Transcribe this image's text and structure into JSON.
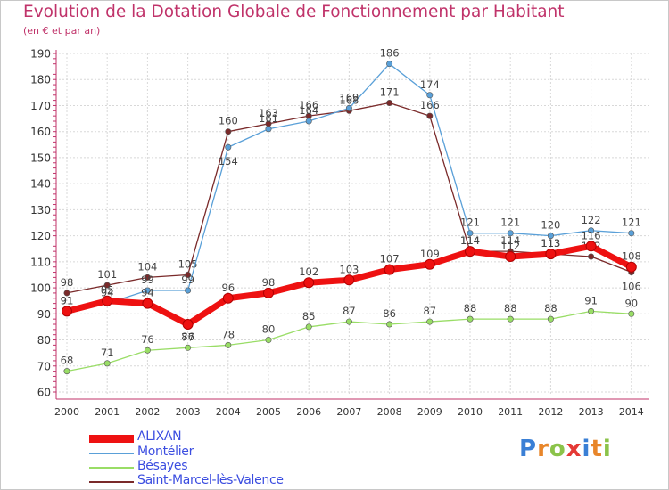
{
  "header": {
    "title": "Evolution de la Dotation Globale de Fonctionnement par Habitant",
    "subtitle": "(en € et par an)"
  },
  "logo": {
    "text": "Proxiti",
    "colors": [
      "#3a7fd5",
      "#e8862a",
      "#8bc34a",
      "#e53935",
      "#3a7fd5",
      "#e8862a",
      "#8bc34a"
    ]
  },
  "chart_data": {
    "type": "line",
    "title": "Evolution de la Dotation Globale de Fonctionnement par Habitant",
    "subtitle": "(en € et par an)",
    "xlabel": "",
    "ylabel": "",
    "x": [
      2000,
      2001,
      2002,
      2003,
      2004,
      2005,
      2006,
      2007,
      2008,
      2009,
      2010,
      2011,
      2012,
      2013,
      2014
    ],
    "x_tick_labels": [
      "2000",
      "2001",
      "2002",
      "2003",
      "2004",
      "2005",
      "2006",
      "2007",
      "2008",
      "2009",
      "2010",
      "2011",
      "2012",
      "2013",
      "2014"
    ],
    "ylim": [
      60,
      190
    ],
    "y_tick_labels": [
      "60",
      "70",
      "80",
      "90",
      "100",
      "110",
      "120",
      "130",
      "140",
      "150",
      "160",
      "170",
      "180",
      "190"
    ],
    "grid": true,
    "legend_position": "bottom-left",
    "series": [
      {
        "name": "ALIXAN",
        "color": "#ee1111",
        "values": [
          91,
          95,
          94,
          86,
          96,
          98,
          102,
          103,
          107,
          109,
          114,
          112,
          113,
          116,
          108
        ]
      },
      {
        "name": "Montélier",
        "color": "#5aa0d8",
        "values": [
          91,
          94,
          99,
          99,
          154,
          161,
          164,
          169,
          186,
          174,
          121,
          121,
          120,
          122,
          121
        ]
      },
      {
        "name": "Bésayes",
        "color": "#99dd66",
        "values": [
          68,
          71,
          76,
          77,
          78,
          80,
          85,
          87,
          86,
          87,
          88,
          88,
          88,
          91,
          90
        ]
      },
      {
        "name": "Saint-Marcel-lès-Valence",
        "color": "#7a2a2a",
        "values": [
          98,
          101,
          104,
          105,
          160,
          163,
          166,
          168,
          171,
          166,
          114,
          114,
          113,
          112,
          106
        ]
      }
    ],
    "data_labels": {
      "ALIXAN": [
        "91",
        "95",
        "94",
        "86",
        "96",
        "98",
        "102",
        "103",
        "107",
        "109",
        "114",
        "112",
        "113",
        "116",
        "108"
      ],
      "Montélier": [
        "91",
        "94",
        "99",
        "99",
        "154",
        "161",
        "164",
        "169",
        "186",
        "174",
        "121",
        "121",
        "120",
        "122",
        "121"
      ],
      "Bésayes": [
        "68",
        "71",
        "76",
        "77",
        "78",
        "80",
        "85",
        "87",
        "86",
        "87",
        "88",
        "88",
        "88",
        "91",
        "90"
      ],
      "Saint-Marcel-lès-Valence": [
        "98",
        "101",
        "104",
        "105",
        "160",
        "163",
        "166",
        "168",
        "171",
        "166",
        "114",
        "114",
        "113",
        "112",
        "106"
      ]
    }
  }
}
